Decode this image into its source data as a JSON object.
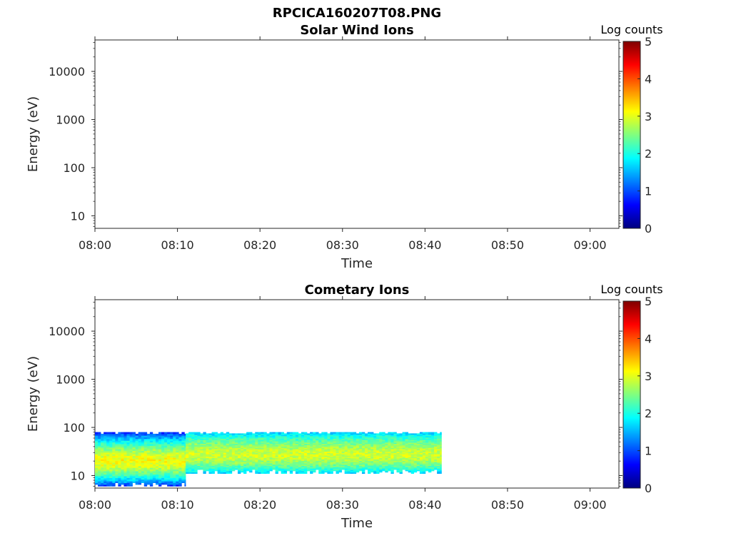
{
  "figure_title": "RPCICA160207T08.PNG",
  "chart_data": [
    {
      "type": "heatmap",
      "title": "Solar Wind Ions",
      "xlabel": "Time",
      "ylabel": "Energy (eV)",
      "x_ticks": [
        "08:00",
        "08:10",
        "08:20",
        "08:30",
        "08:40",
        "08:50",
        "09:00"
      ],
      "x_range_minutes": [
        0,
        63.5
      ],
      "y_ticks": [
        10,
        100,
        1000,
        10000
      ],
      "y_scale": "log",
      "y_range": [
        5.5,
        45000
      ],
      "colorbar": {
        "label": "Log counts",
        "ticks": [
          0,
          1,
          2,
          3,
          4,
          5
        ],
        "range": [
          0,
          5
        ],
        "colormap": "jet"
      },
      "data_present": false,
      "bands": []
    },
    {
      "type": "heatmap",
      "title": "Cometary Ions",
      "xlabel": "Time",
      "ylabel": "Energy (eV)",
      "x_ticks": [
        "08:00",
        "08:10",
        "08:20",
        "08:30",
        "08:40",
        "08:50",
        "09:00"
      ],
      "x_range_minutes": [
        0,
        63.5
      ],
      "y_ticks": [
        10,
        100,
        1000,
        10000
      ],
      "y_scale": "log",
      "y_range": [
        5.5,
        45000
      ],
      "colorbar": {
        "label": "Log counts",
        "ticks": [
          0,
          1,
          2,
          3,
          4,
          5
        ],
        "range": [
          0,
          5
        ],
        "colormap": "jet"
      },
      "data_present": true,
      "data_time_range_minutes": [
        0,
        42
      ],
      "bands": [
        {
          "t_start_min": 0,
          "t_end_min": 11,
          "energy_low_eV": 6,
          "energy_high_eV": 80,
          "peak_energy_eV": 20,
          "peak_log_counts": 3.1,
          "edge_log_counts": 0.8
        },
        {
          "t_start_min": 11,
          "t_end_min": 42,
          "energy_low_eV": 11,
          "energy_high_eV": 80,
          "peak_energy_eV": 27,
          "peak_log_counts": 2.9,
          "edge_log_counts": 1.6
        }
      ]
    }
  ]
}
